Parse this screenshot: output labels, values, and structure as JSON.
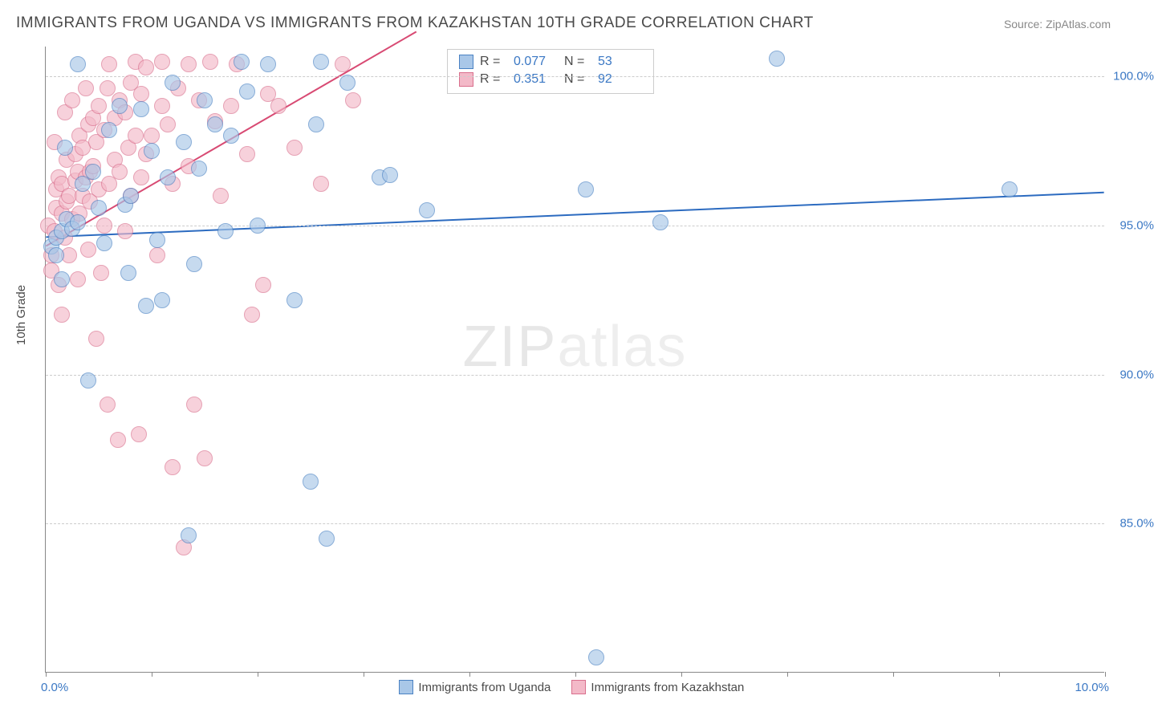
{
  "title": "IMMIGRANTS FROM UGANDA VS IMMIGRANTS FROM KAZAKHSTAN 10TH GRADE CORRELATION CHART",
  "source": "Source: ZipAtlas.com",
  "watermark_zip": "ZIP",
  "watermark_atlas": "atlas",
  "ylabel": "10th Grade",
  "chart": {
    "type": "scatter",
    "background_color": "#ffffff",
    "grid_color": "#cccccc",
    "grid_dash": "4 4",
    "axis_color": "#888888",
    "tick_label_color": "#3b78c4",
    "label_fontsize": 15,
    "title_fontsize": 19,
    "xlim": [
      0,
      10
    ],
    "ylim": [
      80,
      101
    ],
    "x_ticks_major": [
      0,
      5,
      10
    ],
    "x_ticks_minor": [
      1,
      2,
      3,
      4,
      6,
      7,
      8,
      9
    ],
    "x_tick_labels": [
      "0.0%",
      "10.0%"
    ],
    "y_ticks": [
      85,
      90,
      95,
      100
    ],
    "y_tick_labels": [
      "85.0%",
      "90.0%",
      "95.0%",
      "100.0%"
    ],
    "point_radius": 10,
    "point_border_width": 1.5,
    "point_fill_opacity": 0.35
  },
  "series": [
    {
      "name": "Immigrants from Uganda",
      "color_border": "#4a82c3",
      "color_fill": "#a9c7e8",
      "trend_color": "#2c6bc0",
      "trend_width": 2,
      "trend": {
        "x1": 0,
        "y1": 94.6,
        "x2": 10,
        "y2": 96.1
      },
      "R": "0.077",
      "N": "53",
      "points": [
        [
          0.05,
          94.3
        ],
        [
          0.1,
          94.0
        ],
        [
          0.1,
          94.6
        ],
        [
          0.15,
          93.2
        ],
        [
          0.15,
          94.8
        ],
        [
          0.18,
          97.6
        ],
        [
          0.2,
          95.2
        ],
        [
          0.25,
          94.9
        ],
        [
          0.3,
          95.1
        ],
        [
          0.3,
          100.4
        ],
        [
          0.35,
          96.4
        ],
        [
          0.4,
          89.8
        ],
        [
          0.45,
          96.8
        ],
        [
          0.5,
          95.6
        ],
        [
          0.55,
          94.4
        ],
        [
          0.6,
          98.2
        ],
        [
          0.7,
          99.0
        ],
        [
          0.75,
          95.7
        ],
        [
          0.78,
          93.4
        ],
        [
          0.8,
          96.0
        ],
        [
          0.9,
          98.9
        ],
        [
          0.95,
          92.3
        ],
        [
          1.0,
          97.5
        ],
        [
          1.05,
          94.5
        ],
        [
          1.1,
          92.5
        ],
        [
          1.15,
          96.6
        ],
        [
          1.2,
          99.8
        ],
        [
          1.3,
          97.8
        ],
        [
          1.35,
          84.6
        ],
        [
          1.4,
          93.7
        ],
        [
          1.45,
          96.9
        ],
        [
          1.5,
          99.2
        ],
        [
          1.6,
          98.4
        ],
        [
          1.7,
          94.8
        ],
        [
          1.75,
          98.0
        ],
        [
          1.85,
          100.5
        ],
        [
          1.9,
          99.5
        ],
        [
          2.0,
          95.0
        ],
        [
          2.1,
          100.4
        ],
        [
          2.35,
          92.5
        ],
        [
          2.5,
          86.4
        ],
        [
          2.55,
          98.4
        ],
        [
          2.6,
          100.5
        ],
        [
          2.65,
          84.5
        ],
        [
          2.85,
          99.8
        ],
        [
          3.15,
          96.6
        ],
        [
          3.25,
          96.7
        ],
        [
          3.6,
          95.5
        ],
        [
          5.1,
          96.2
        ],
        [
          5.2,
          80.5
        ],
        [
          5.8,
          95.1
        ],
        [
          6.9,
          100.6
        ],
        [
          9.1,
          96.2
        ]
      ]
    },
    {
      "name": "Immigrants from Kazakhstan",
      "color_border": "#d96f8d",
      "color_fill": "#f3b9c8",
      "trend_color": "#d84a73",
      "trend_width": 2,
      "trend": {
        "x1": 0,
        "y1": 94.3,
        "x2": 3.5,
        "y2": 101.5
      },
      "R": "0.351",
      "N": "92",
      "points": [
        [
          0.02,
          95.0
        ],
        [
          0.05,
          94.0
        ],
        [
          0.05,
          93.5
        ],
        [
          0.08,
          94.8
        ],
        [
          0.08,
          97.8
        ],
        [
          0.1,
          95.6
        ],
        [
          0.1,
          96.2
        ],
        [
          0.12,
          93.0
        ],
        [
          0.12,
          96.6
        ],
        [
          0.15,
          92.0
        ],
        [
          0.15,
          95.4
        ],
        [
          0.15,
          96.4
        ],
        [
          0.18,
          94.6
        ],
        [
          0.18,
          98.8
        ],
        [
          0.2,
          95.8
        ],
        [
          0.2,
          97.2
        ],
        [
          0.22,
          94.0
        ],
        [
          0.22,
          96.0
        ],
        [
          0.25,
          95.2
        ],
        [
          0.25,
          99.2
        ],
        [
          0.28,
          96.5
        ],
        [
          0.28,
          97.4
        ],
        [
          0.3,
          96.8
        ],
        [
          0.3,
          93.2
        ],
        [
          0.32,
          98.0
        ],
        [
          0.32,
          95.4
        ],
        [
          0.35,
          97.6
        ],
        [
          0.35,
          96.0
        ],
        [
          0.38,
          99.6
        ],
        [
          0.38,
          96.6
        ],
        [
          0.4,
          94.2
        ],
        [
          0.4,
          98.4
        ],
        [
          0.42,
          95.8
        ],
        [
          0.42,
          96.8
        ],
        [
          0.45,
          98.6
        ],
        [
          0.45,
          97.0
        ],
        [
          0.48,
          91.2
        ],
        [
          0.48,
          97.8
        ],
        [
          0.5,
          99.0
        ],
        [
          0.5,
          96.2
        ],
        [
          0.52,
          93.4
        ],
        [
          0.55,
          98.2
        ],
        [
          0.55,
          95.0
        ],
        [
          0.58,
          99.6
        ],
        [
          0.58,
          89.0
        ],
        [
          0.6,
          96.4
        ],
        [
          0.6,
          100.4
        ],
        [
          0.65,
          97.2
        ],
        [
          0.65,
          98.6
        ],
        [
          0.68,
          87.8
        ],
        [
          0.7,
          99.2
        ],
        [
          0.7,
          96.8
        ],
        [
          0.75,
          94.8
        ],
        [
          0.75,
          98.8
        ],
        [
          0.78,
          97.6
        ],
        [
          0.8,
          99.8
        ],
        [
          0.8,
          96.0
        ],
        [
          0.85,
          100.5
        ],
        [
          0.85,
          98.0
        ],
        [
          0.88,
          88.0
        ],
        [
          0.9,
          99.4
        ],
        [
          0.9,
          96.6
        ],
        [
          0.95,
          97.4
        ],
        [
          0.95,
          100.3
        ],
        [
          1.0,
          98.0
        ],
        [
          1.05,
          94.0
        ],
        [
          1.1,
          99.0
        ],
        [
          1.1,
          100.5
        ],
        [
          1.15,
          98.4
        ],
        [
          1.2,
          96.4
        ],
        [
          1.2,
          86.9
        ],
        [
          1.25,
          99.6
        ],
        [
          1.3,
          84.2
        ],
        [
          1.35,
          100.4
        ],
        [
          1.35,
          97.0
        ],
        [
          1.4,
          89.0
        ],
        [
          1.45,
          99.2
        ],
        [
          1.5,
          87.2
        ],
        [
          1.55,
          100.5
        ],
        [
          1.6,
          98.5
        ],
        [
          1.65,
          96.0
        ],
        [
          1.75,
          99.0
        ],
        [
          1.8,
          100.4
        ],
        [
          1.9,
          97.4
        ],
        [
          1.95,
          92.0
        ],
        [
          2.05,
          93.0
        ],
        [
          2.1,
          99.4
        ],
        [
          2.2,
          99.0
        ],
        [
          2.35,
          97.6
        ],
        [
          2.6,
          96.4
        ],
        [
          2.8,
          100.4
        ],
        [
          2.9,
          99.2
        ]
      ]
    }
  ],
  "legend_top": {
    "r_label": "R =",
    "n_label": "N ="
  },
  "legend_bottom": [
    {
      "label": "Immigrants from Uganda",
      "fill": "#a9c7e8",
      "border": "#4a82c3"
    },
    {
      "label": "Immigrants from Kazakhstan",
      "fill": "#f3b9c8",
      "border": "#d96f8d"
    }
  ]
}
